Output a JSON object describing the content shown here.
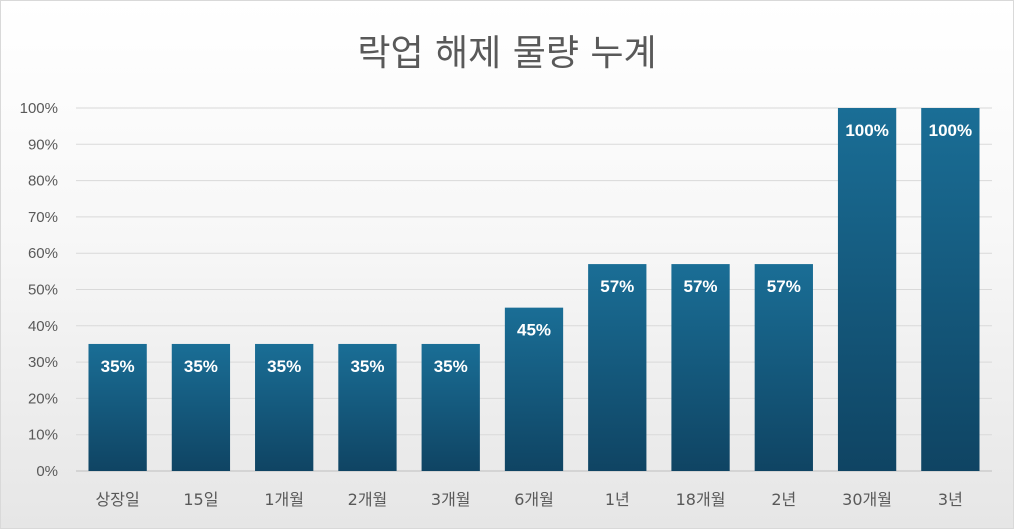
{
  "chart_data": {
    "type": "bar",
    "title": "락업 해제 물량 누계",
    "categories": [
      "상장일",
      "15일",
      "1개월",
      "2개월",
      "3개월",
      "6개월",
      "1년",
      "18개월",
      "2년",
      "30개월",
      "3년"
    ],
    "values": [
      35,
      35,
      35,
      35,
      35,
      45,
      57,
      57,
      57,
      100,
      100
    ],
    "data_labels": [
      "35%",
      "35%",
      "35%",
      "35%",
      "35%",
      "45%",
      "57%",
      "57%",
      "57%",
      "100%",
      "100%"
    ],
    "y_ticks": [
      "0%",
      "10%",
      "20%",
      "30%",
      "40%",
      "50%",
      "60%",
      "70%",
      "80%",
      "90%",
      "100%"
    ],
    "ylim": [
      0,
      100
    ],
    "xlabel": "",
    "ylabel": "",
    "grid": true,
    "legend": "none",
    "bar_color_top": "#1a6e96",
    "bar_color_bottom": "#0f4463"
  }
}
